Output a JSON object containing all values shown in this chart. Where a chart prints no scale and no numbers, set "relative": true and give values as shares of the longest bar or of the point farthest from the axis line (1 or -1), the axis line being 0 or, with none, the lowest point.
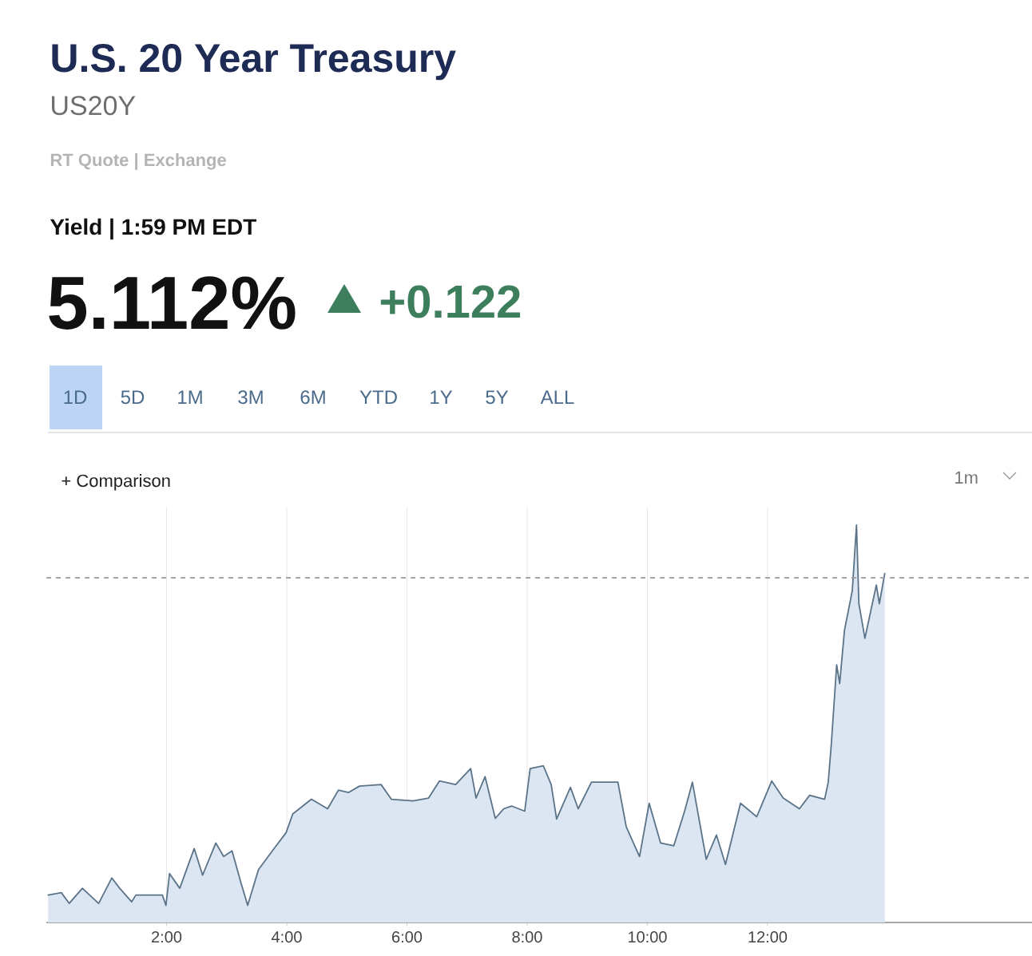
{
  "chart_data": {
    "type": "area",
    "title": "U.S. 20 Year Treasury",
    "subtitle": "US20Y",
    "annotations": [
      "RT Quote | Exchange",
      "Yield | 1:59 PM EDT",
      "5.112%",
      "+0.122",
      "1D",
      "5D",
      "1M",
      "3M",
      "6M",
      "YTD",
      "1Y",
      "5Y",
      "ALL",
      "+ Comparison",
      "1m"
    ],
    "relative": true,
    "xlim": [
      0,
      16.4
    ],
    "xticks": [
      {
        "value": 2,
        "label": "2:00"
      },
      {
        "value": 4,
        "label": "4:00"
      },
      {
        "value": 6,
        "label": "6:00"
      },
      {
        "value": 8,
        "label": "8:00"
      },
      {
        "value": 10,
        "label": "10:00"
      },
      {
        "value": 12,
        "label": "12:00"
      }
    ],
    "grid": "x",
    "line_style": "solid",
    "ref_lines": [
      {
        "axis": "y",
        "value": 0.867,
        "color": "#9a9a9a",
        "line_style": "dashed"
      }
    ],
    "series": [
      {
        "color": "#5b7389",
        "x": [
          0.03,
          0.25,
          0.38,
          0.6,
          0.87,
          1.09,
          1.22,
          1.42,
          1.49,
          1.93,
          1.99,
          2.05,
          2.22,
          2.46,
          2.6,
          2.82,
          2.95,
          3.09,
          3.24,
          3.35,
          3.53,
          3.79,
          3.99,
          4.1,
          4.41,
          4.68,
          4.86,
          5.03,
          5.21,
          5.57,
          5.74,
          6.1,
          6.36,
          6.54,
          6.81,
          7.06,
          7.15,
          7.3,
          7.47,
          7.61,
          7.74,
          7.96,
          8.05,
          8.27,
          8.4,
          8.49,
          8.72,
          8.85,
          9.07,
          9.2,
          9.51,
          9.65,
          9.87,
          10.03,
          10.22,
          10.44,
          10.62,
          10.75,
          10.98,
          11.15,
          11.3,
          11.55,
          11.82,
          12.07,
          12.26,
          12.53,
          12.7,
          12.95,
          13.01,
          13.06,
          13.15,
          13.2,
          13.28,
          13.41,
          13.48,
          13.52,
          13.62,
          13.81,
          13.86,
          13.95
        ],
        "values": [
          0.069,
          0.075,
          0.048,
          0.086,
          0.048,
          0.112,
          0.086,
          0.052,
          0.069,
          0.069,
          0.043,
          0.123,
          0.086,
          0.186,
          0.119,
          0.2,
          0.166,
          0.18,
          0.099,
          0.043,
          0.133,
          0.186,
          0.226,
          0.273,
          0.31,
          0.286,
          0.333,
          0.327,
          0.343,
          0.347,
          0.31,
          0.306,
          0.313,
          0.356,
          0.347,
          0.387,
          0.313,
          0.367,
          0.262,
          0.286,
          0.293,
          0.28,
          0.387,
          0.394,
          0.347,
          0.26,
          0.34,
          0.286,
          0.353,
          0.353,
          0.353,
          0.24,
          0.166,
          0.3,
          0.2,
          0.193,
          0.28,
          0.353,
          0.159,
          0.22,
          0.146,
          0.3,
          0.266,
          0.356,
          0.313,
          0.286,
          0.32,
          0.31,
          0.353,
          0.447,
          0.648,
          0.601,
          0.735,
          0.835,
          1.0,
          0.802,
          0.715,
          0.849,
          0.802,
          0.878
        ]
      }
    ]
  }
}
